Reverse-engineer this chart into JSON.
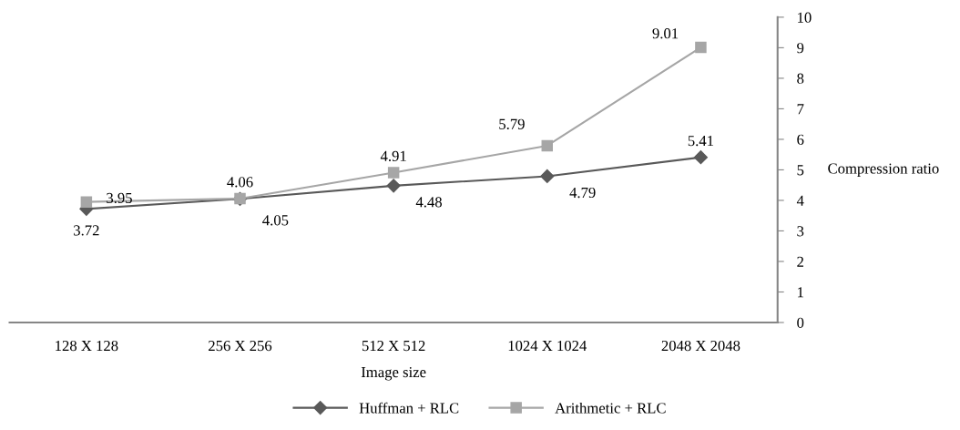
{
  "chart_data": {
    "type": "line",
    "xlabel": "Image size",
    "ylabel": "Compression ratio",
    "categories": [
      "128 X 128",
      "256 X 256",
      "512 X 512",
      "1024 X 1024",
      "2048 X 2048"
    ],
    "series": [
      {
        "name": "Huffman + RLC",
        "color": "#595959",
        "marker": "diamond",
        "values": [
          3.72,
          4.05,
          4.48,
          4.79,
          5.41
        ]
      },
      {
        "name": "Arithmetic + RLC",
        "color": "#a6a6a6",
        "marker": "square",
        "values": [
          3.95,
          4.06,
          4.91,
          5.79,
          9.01
        ]
      }
    ],
    "ylim": [
      0,
      10
    ],
    "yticks": [
      0,
      1,
      2,
      3,
      4,
      5,
      6,
      7,
      8,
      9,
      10
    ],
    "grid": false,
    "legend": "bottom",
    "data_labels": true,
    "line_style": "solid"
  }
}
